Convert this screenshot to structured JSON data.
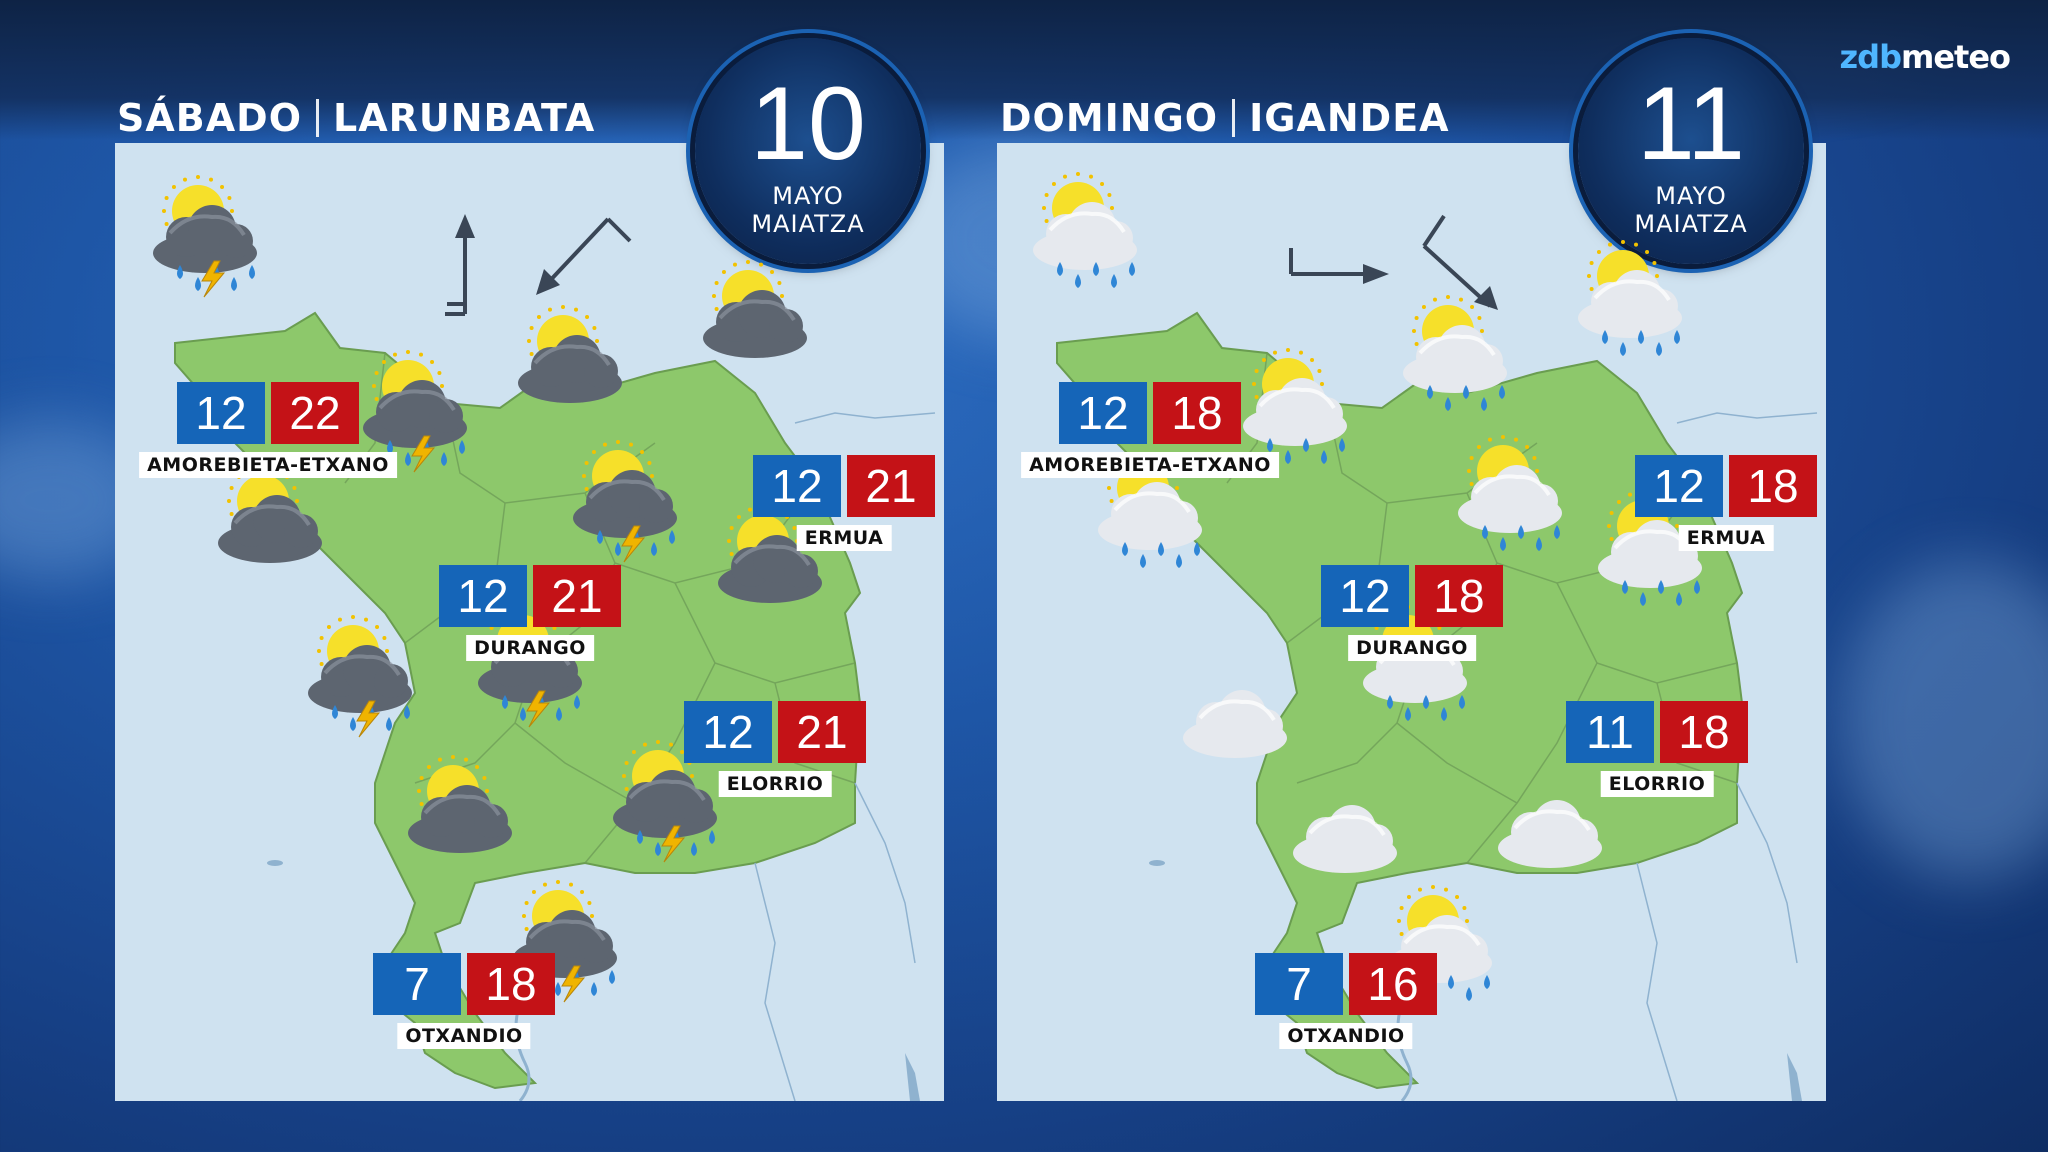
{
  "brand": {
    "logo_prefix": "zdb",
    "logo_suffix": "meteo"
  },
  "colors": {
    "min_temp": "#1565b8",
    "max_temp": "#c41217",
    "land": "#8dc86b",
    "sea": "#cfe2f0"
  },
  "days": [
    {
      "weekday_es": "SÁBADO",
      "weekday_eu": "LARUNBATA",
      "day_number": "10",
      "month_es": "MAYO",
      "month_eu": "MAIATZA",
      "wind_arrows": [
        "north",
        "southwest"
      ],
      "cities": [
        {
          "name": "AMOREBIETA-ETXANO",
          "min": "12",
          "max": "22"
        },
        {
          "name": "ERMUA",
          "min": "12",
          "max": "21"
        },
        {
          "name": "DURANGO",
          "min": "12",
          "max": "21"
        },
        {
          "name": "ELORRIO",
          "min": "12",
          "max": "21"
        },
        {
          "name": "OTXANDIO",
          "min": "7",
          "max": "18"
        }
      ],
      "icons": [
        "sun-cloud-rain-thunder-icon",
        "sun-cloud-icon",
        "sun-cloud-icon",
        "sun-cloud-rain-thunder-icon",
        "sun-cloud-icon",
        "sun-cloud-rain-thunder-icon",
        "sun-cloud-icon",
        "sun-cloud-rain-thunder-icon",
        "sun-cloud-rain-thunder-icon",
        "sun-cloud-icon",
        "sun-cloud-rain-thunder-icon",
        "sun-cloud-rain-thunder-icon"
      ]
    },
    {
      "weekday_es": "DOMINGO",
      "weekday_eu": "IGANDEA",
      "day_number": "11",
      "month_es": "MAYO",
      "month_eu": "MAIATZA",
      "wind_arrows": [
        "east",
        "southeast"
      ],
      "cities": [
        {
          "name": "AMOREBIETA-ETXANO",
          "min": "12",
          "max": "18"
        },
        {
          "name": "ERMUA",
          "min": "12",
          "max": "18"
        },
        {
          "name": "DURANGO",
          "min": "12",
          "max": "18"
        },
        {
          "name": "ELORRIO",
          "min": "11",
          "max": "18"
        },
        {
          "name": "OTXANDIO",
          "min": "7",
          "max": "16"
        }
      ],
      "icons": [
        "sun-cloud-rain-icon",
        "sun-cloud-rain-icon",
        "sun-cloud-rain-icon",
        "sun-cloud-rain-icon",
        "sun-cloud-rain-icon",
        "sun-cloud-rain-icon",
        "sun-cloud-rain-icon",
        "cloud-icon",
        "sun-cloud-rain-icon",
        "cloud-icon",
        "cloud-icon",
        "sun-cloud-rain-icon"
      ]
    }
  ]
}
